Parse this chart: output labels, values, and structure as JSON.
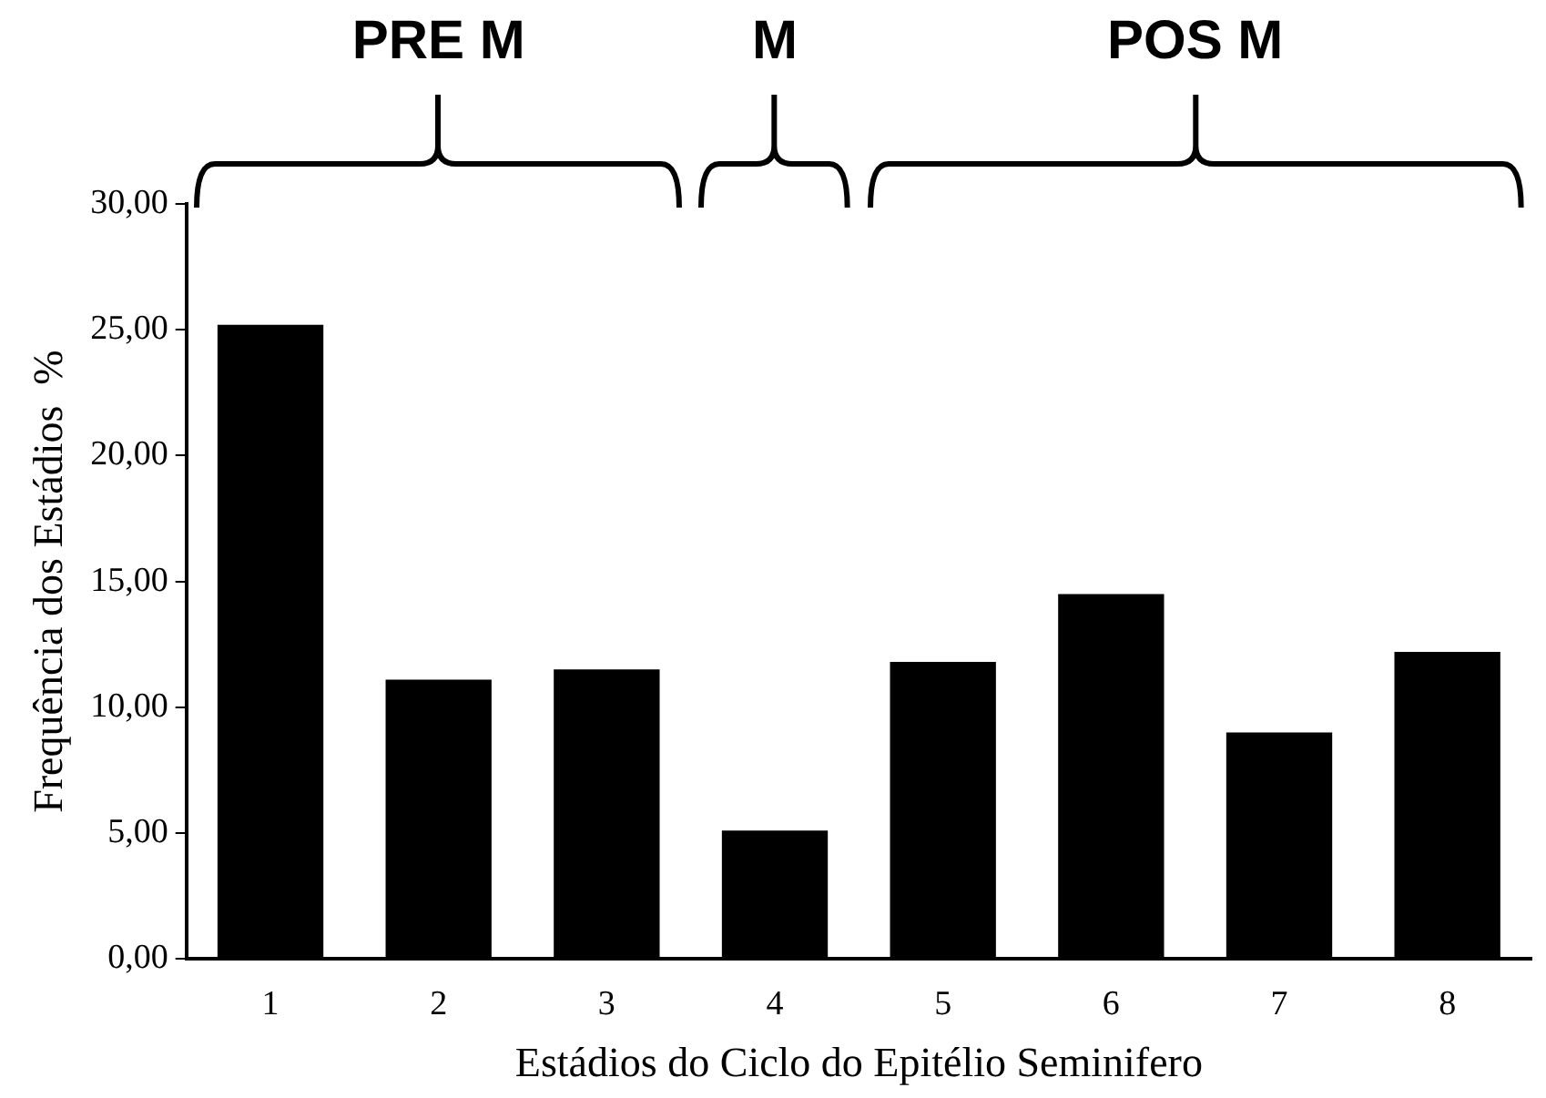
{
  "chart_data": {
    "type": "bar",
    "xlabel": "Estádios do Ciclo do Epitélio Seminifero",
    "ylabel": "Frequência dos Estádios  %",
    "categories": [
      "1",
      "2",
      "3",
      "4",
      "5",
      "6",
      "7",
      "8"
    ],
    "values": [
      25.2,
      11.1,
      11.5,
      5.1,
      11.8,
      14.5,
      9.0,
      12.2
    ],
    "color": "#000000",
    "ylim": [
      0,
      30
    ],
    "yticks": [
      {
        "value": 0,
        "label": "0,00"
      },
      {
        "value": 5,
        "label": "5,00"
      },
      {
        "value": 10,
        "label": "10,00"
      },
      {
        "value": 15,
        "label": "15,00"
      },
      {
        "value": 20,
        "label": "20,00"
      },
      {
        "value": 25,
        "label": "25,00"
      },
      {
        "value": 30,
        "label": "30,00"
      }
    ],
    "grid": false,
    "legend": false,
    "annotations": [
      "PRE M",
      "M",
      "POS M"
    ]
  }
}
